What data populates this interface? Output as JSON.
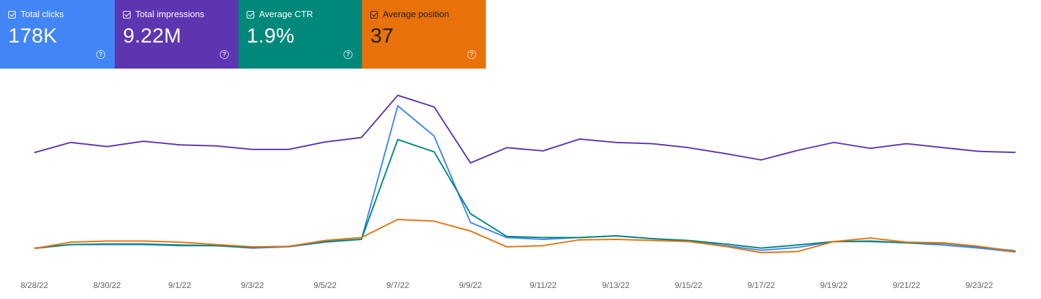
{
  "metrics": [
    {
      "label": "Total clicks",
      "value": "178K",
      "color": "#4285f4",
      "checked": true
    },
    {
      "label": "Total impressions",
      "value": "9.22M",
      "color": "#5e35b1",
      "checked": true
    },
    {
      "label": "Average CTR",
      "value": "1.9%",
      "color": "#00897b",
      "checked": true
    },
    {
      "label": "Average position",
      "value": "37",
      "color": "#e8710a",
      "checked": true
    }
  ],
  "help_icon": "help-circle-icon",
  "chart_data": {
    "type": "line",
    "x": [
      "8/28/22",
      "8/29/22",
      "8/30/22",
      "8/31/22",
      "9/1/22",
      "9/2/22",
      "9/3/22",
      "9/4/22",
      "9/5/22",
      "9/6/22",
      "9/7/22",
      "9/8/22",
      "9/9/22",
      "9/10/22",
      "9/11/22",
      "9/12/22",
      "9/13/22",
      "9/14/22",
      "9/15/22",
      "9/16/22",
      "9/17/22",
      "9/18/22",
      "9/19/22",
      "9/20/22",
      "9/21/22",
      "9/22/22",
      "9/23/22",
      "9/24/22"
    ],
    "x_tick_labels": [
      "8/28/22",
      "8/30/22",
      "9/1/22",
      "9/3/22",
      "9/5/22",
      "9/7/22",
      "9/9/22",
      "9/11/22",
      "9/13/22",
      "9/15/22",
      "9/17/22",
      "9/19/22",
      "9/21/22",
      "9/23/22"
    ],
    "grid": false,
    "legend": "metric cards above chart",
    "normalized": true,
    "ylim": [
      0,
      1
    ],
    "series": [
      {
        "name": "Total impressions",
        "color": "#5e35b1",
        "values": [
          0.64,
          0.704,
          0.678,
          0.711,
          0.689,
          0.682,
          0.66,
          0.66,
          0.707,
          0.735,
          1.0,
          0.927,
          0.575,
          0.671,
          0.651,
          0.725,
          0.704,
          0.696,
          0.671,
          0.634,
          0.594,
          0.654,
          0.704,
          0.667,
          0.696,
          0.671,
          0.648,
          0.641
        ]
      },
      {
        "name": "Total clicks",
        "color": "#4285f4",
        "values": [
          0.037,
          0.062,
          0.062,
          0.062,
          0.055,
          0.055,
          0.04,
          0.048,
          0.077,
          0.095,
          0.934,
          0.744,
          0.201,
          0.106,
          0.095,
          0.106,
          0.117,
          0.099,
          0.084,
          0.055,
          0.026,
          0.044,
          0.081,
          0.081,
          0.073,
          0.059,
          0.04,
          0.015
        ]
      },
      {
        "name": "Average CTR",
        "color": "#00897b",
        "values": [
          0.04,
          0.062,
          0.066,
          0.066,
          0.059,
          0.055,
          0.044,
          0.051,
          0.081,
          0.095,
          0.722,
          0.645,
          0.256,
          0.113,
          0.106,
          0.106,
          0.117,
          0.099,
          0.088,
          0.066,
          0.04,
          0.059,
          0.081,
          0.084,
          0.073,
          0.07,
          0.048,
          0.022
        ]
      },
      {
        "name": "Average position",
        "color": "#e8710a",
        "values": [
          0.037,
          0.077,
          0.084,
          0.084,
          0.077,
          0.062,
          0.048,
          0.051,
          0.088,
          0.106,
          0.22,
          0.209,
          0.147,
          0.048,
          0.055,
          0.092,
          0.095,
          0.088,
          0.081,
          0.051,
          0.011,
          0.018,
          0.081,
          0.103,
          0.077,
          0.073,
          0.051,
          0.018
        ]
      }
    ]
  }
}
